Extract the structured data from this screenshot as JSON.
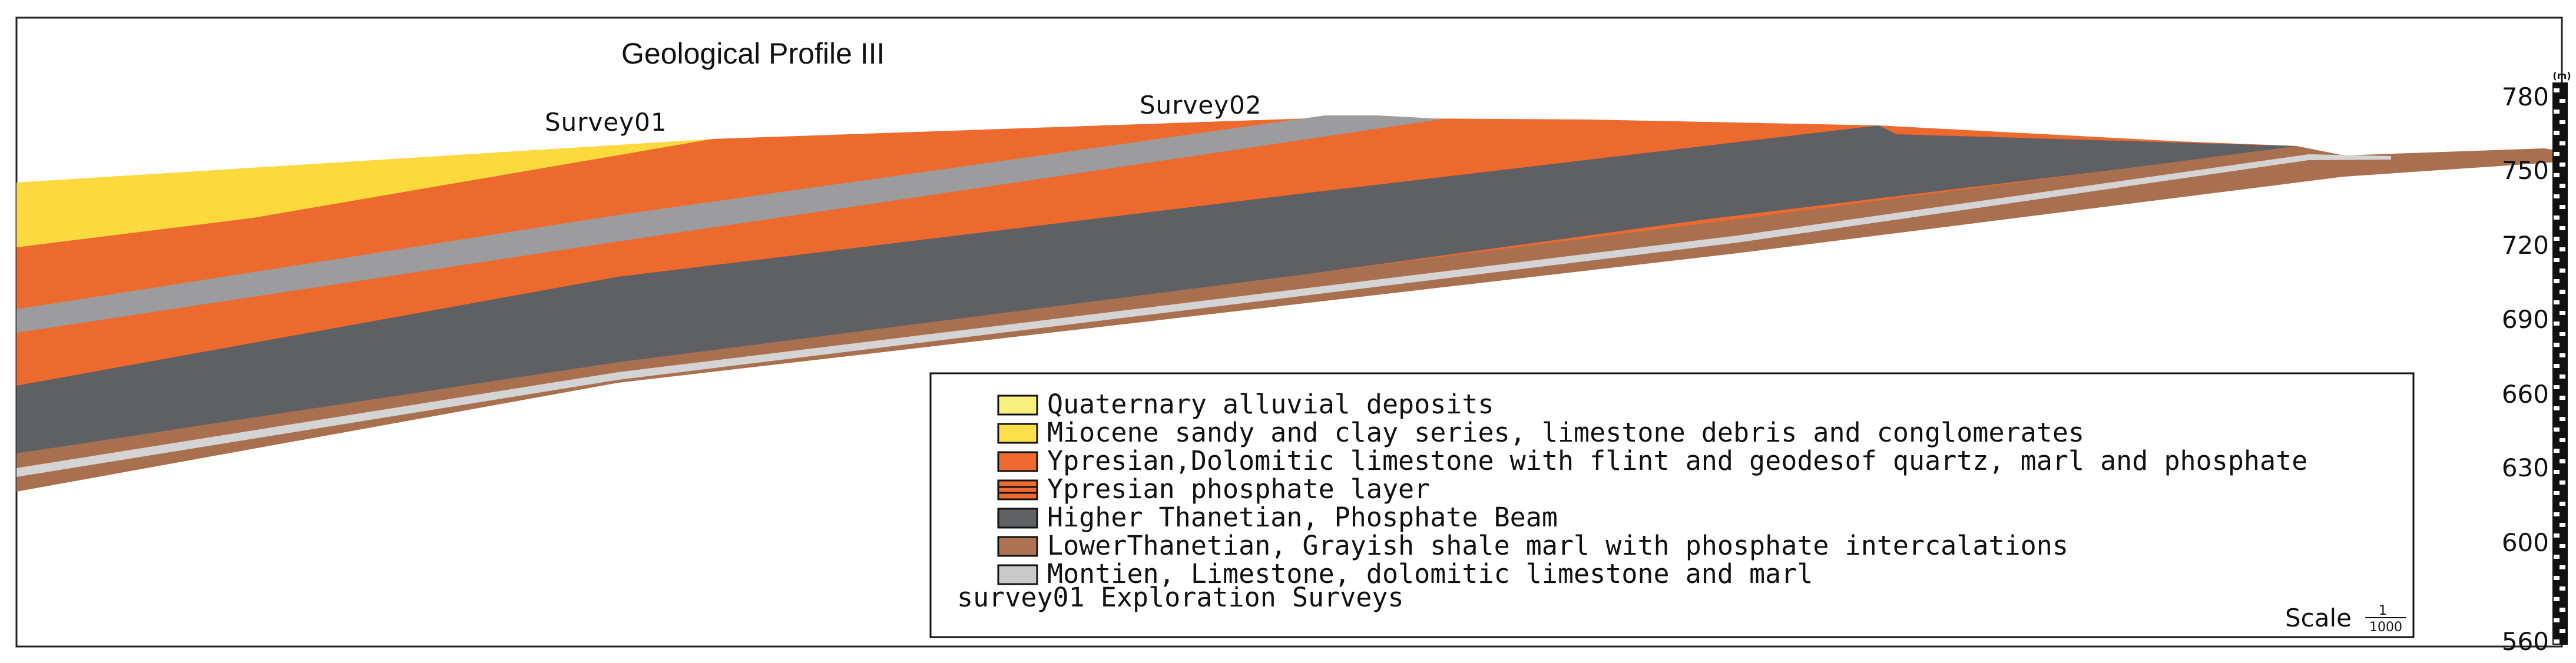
{
  "title": "Geological Profile III",
  "surveys": [
    {
      "label": "Survey01"
    },
    {
      "label": "Survey02"
    }
  ],
  "axis": {
    "unit": "(m)",
    "ticks": [
      "780",
      "750",
      "720",
      "690",
      "660",
      "630",
      "600",
      "560"
    ]
  },
  "legend": {
    "items": [
      {
        "label": "Quaternary alluvial deposits",
        "color": "#f9ef7e",
        "hatched": false
      },
      {
        "label": "Miocene sandy and clay series, limestone debris and conglomerates",
        "color": "#fde047",
        "hatched": false
      },
      {
        "label": "Ypresian,Dolomitic limestone with flint and geodesof quartz, marl and phosphate",
        "color": "#ef6a30",
        "hatched": false
      },
      {
        "label": "Ypresian phosphate layer",
        "color": "#ef6a30",
        "hatched": true
      },
      {
        "label": "Higher Thanetian, Phosphate Beam",
        "color": "#5f6163",
        "hatched": false
      },
      {
        "label": "LowerThanetian, Grayish shale marl with phosphate intercalations",
        "color": "#ad7252",
        "hatched": false
      },
      {
        "label": "Montien, Limestone, dolomitic limestone and marl",
        "color": "#c9c9c9",
        "hatched": false
      }
    ],
    "survey_note": "survey01 Exploration Surveys"
  },
  "scale": {
    "word": "Scale",
    "numerator": "1",
    "denominator": "1000"
  },
  "colors": {
    "miocene": "#fcd93c",
    "ypresian": "#ed6a2f",
    "phosphate_grey": "#9c9c9e",
    "thanetian_higher": "#5e6063",
    "thanetian_lower": "#a8704f",
    "montien": "#d4d4d4"
  }
}
